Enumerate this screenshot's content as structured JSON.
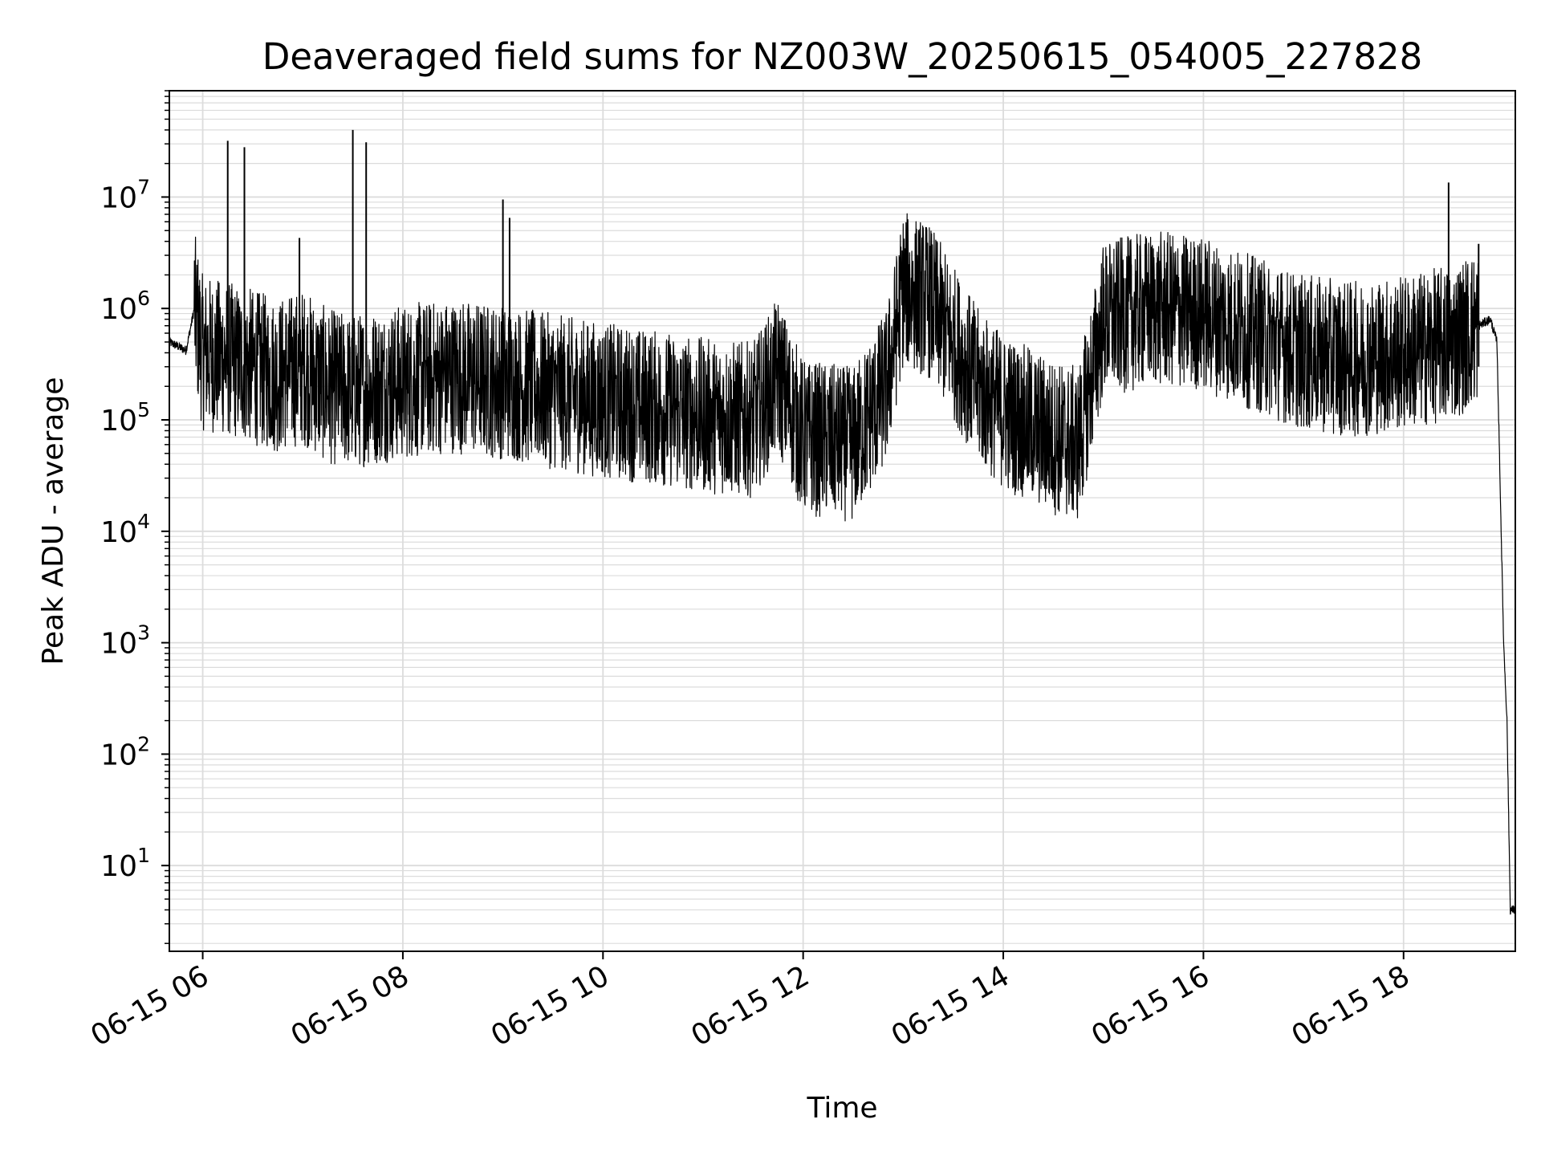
{
  "chart_data": {
    "type": "line",
    "title": "Deaveraged field sums for NZ003W_20250615_054005_227828",
    "xlabel": "Time",
    "ylabel": "Peak ADU - average",
    "y_scale": "log",
    "ylim": [
      1.7,
      90000000
    ],
    "xlim": [
      "06-15 05:40",
      "06-15 19:07"
    ],
    "grid": true,
    "line_color": "#000000",
    "x_ticks": [
      "06-15 06",
      "06-15 08",
      "06-15 10",
      "06-15 12",
      "06-15 14",
      "06-15 16",
      "06-15 18"
    ],
    "y_ticks": [
      {
        "base": "10",
        "exp": "1",
        "value": 10
      },
      {
        "base": "10",
        "exp": "2",
        "value": 100
      },
      {
        "base": "10",
        "exp": "3",
        "value": 1000
      },
      {
        "base": "10",
        "exp": "4",
        "value": 10000
      },
      {
        "base": "10",
        "exp": "5",
        "value": 100000
      },
      {
        "base": "10",
        "exp": "6",
        "value": 1000000
      },
      {
        "base": "10",
        "exp": "7",
        "value": 10000000
      }
    ],
    "series": [
      {
        "x": [
          "06-15 05:40",
          "06-15 05:50",
          "06-15 05:55",
          "06-15 06:00",
          "06-15 06:15",
          "06-15 06:30",
          "06-15 06:45",
          "06-15 07:00",
          "06-15 07:15",
          "06-15 07:30",
          "06-15 07:45",
          "06-15 08:00",
          "06-15 08:30",
          "06-15 09:00",
          "06-15 09:30",
          "06-15 10:00",
          "06-15 10:30",
          "06-15 11:00",
          "06-15 11:30",
          "06-15 11:45",
          "06-15 12:00",
          "06-15 12:30",
          "06-15 12:50",
          "06-15 13:00",
          "06-15 13:15",
          "06-15 13:30",
          "06-15 13:45",
          "06-15 14:00",
          "06-15 14:30",
          "06-15 14:45",
          "06-15 15:00",
          "06-15 15:30",
          "06-15 16:00",
          "06-15 16:30",
          "06-15 17:00",
          "06-15 17:30",
          "06-15 18:00",
          "06-15 18:30",
          "06-15 18:45",
          "06-15 18:52",
          "06-15 18:56",
          "06-15 19:00",
          "06-15 19:02",
          "06-15 19:04",
          "06-15 19:07"
        ],
        "y": [
          500000,
          420000,
          1000000,
          400000,
          350000,
          300000,
          250000,
          300000,
          200000,
          180000,
          200000,
          220000,
          250000,
          220000,
          180000,
          150000,
          130000,
          110000,
          100000,
          250000,
          70000,
          60000,
          200000,
          1500000,
          1200000,
          500000,
          200000,
          120000,
          70000,
          60000,
          800000,
          1000000,
          900000,
          600000,
          400000,
          350000,
          400000,
          500000,
          700000,
          800000,
          500000,
          1000,
          200,
          4,
          4
        ]
      }
    ],
    "spikes": [
      {
        "x": "06-15 06:15",
        "y": 32000000
      },
      {
        "x": "06-15 06:25",
        "y": 28000000
      },
      {
        "x": "06-15 06:58",
        "y": 4300000
      },
      {
        "x": "06-15 07:30",
        "y": 40000000
      },
      {
        "x": "06-15 07:38",
        "y": 31000000
      },
      {
        "x": "06-15 09:00",
        "y": 9500000
      },
      {
        "x": "06-15 09:04",
        "y": 6500000
      },
      {
        "x": "06-15 18:27",
        "y": 13500000
      },
      {
        "x": "06-15 18:45",
        "y": 3800000
      }
    ]
  }
}
